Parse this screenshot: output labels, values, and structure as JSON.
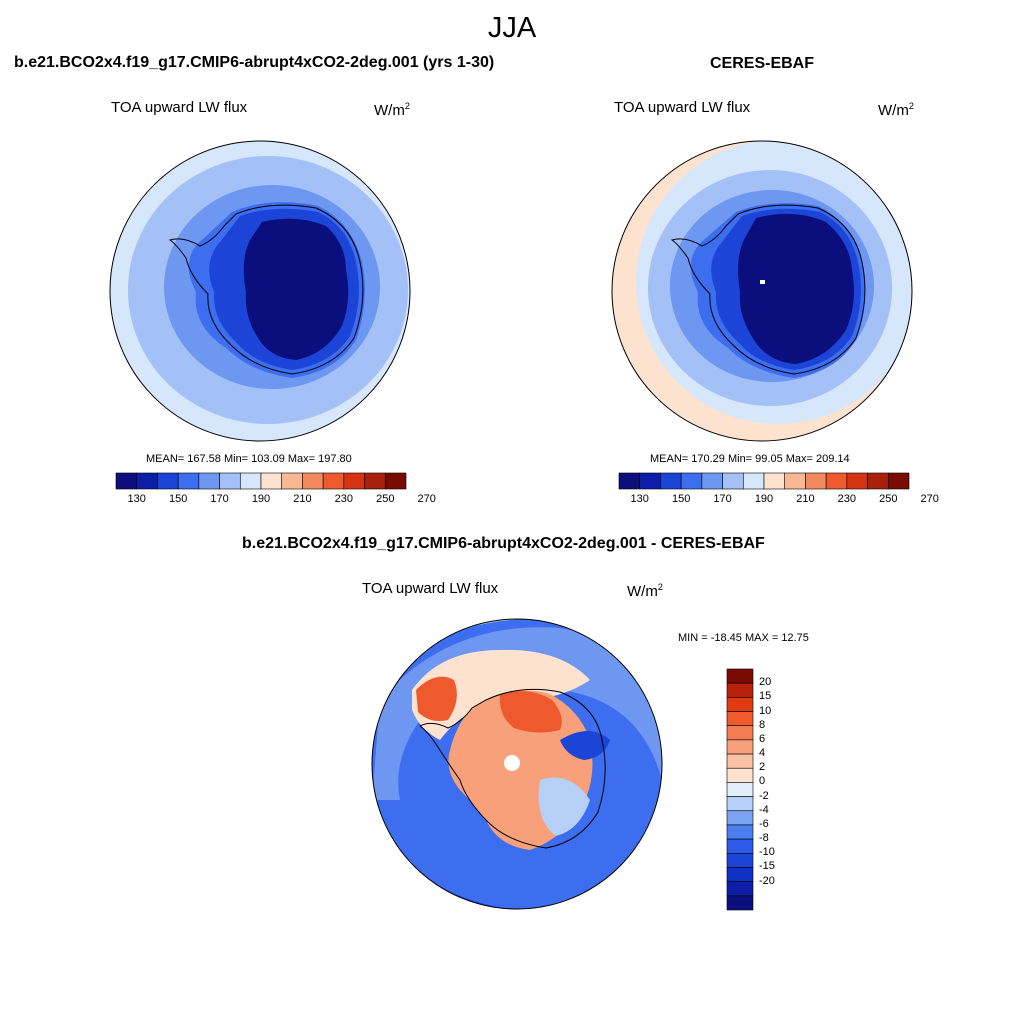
{
  "season": "JJA",
  "panels": [
    {
      "title": "b.e21.BCO2x4.f19_g17.CMIP6-abrupt4xCO2-2deg.001 (yrs 1-30)",
      "variable": "TOA upward LW flux",
      "units": "W/m",
      "units_exp": "2",
      "stats": "MEAN= 167.58  Min= 103.09  Max= 197.80"
    },
    {
      "title": "CERES-EBAF",
      "variable": "TOA upward LW flux",
      "units": "W/m",
      "units_exp": "2",
      "stats": "MEAN= 170.29  Min=  99.05  Max= 209.14"
    },
    {
      "title": "b.e21.BCO2x4.f19_g17.CMIP6-abrupt4xCO2-2deg.001 - CERES-EBAF",
      "variable": "TOA upward LW flux",
      "units": "W/m",
      "units_exp": "2",
      "stats": "MIN = -18.45 MAX =  12.75"
    }
  ],
  "colorbar_abs": {
    "colors": [
      "#0a0f7d",
      "#0c1ea8",
      "#1c45d8",
      "#3d6ef0",
      "#6e97f2",
      "#a3c0f7",
      "#d6e6fb",
      "#fde2d0",
      "#f8b894",
      "#f38a5e",
      "#ee5a2e",
      "#d63312",
      "#a8200b",
      "#7a0a04"
    ],
    "tick_labels": [
      "130",
      "150",
      "170",
      "190",
      "210",
      "230",
      "250",
      "270"
    ]
  },
  "colorbar_diff": {
    "colors": [
      "#0a0f7d",
      "#0c1ea8",
      "#0f32c4",
      "#1c45d8",
      "#2d5ae8",
      "#4a7ff0",
      "#7aa3f4",
      "#b7d0f8",
      "#e3eefb",
      "#fde2d0",
      "#fbc3a3",
      "#f8a07a",
      "#f47c52",
      "#f05a2c",
      "#e03a10",
      "#b8200a",
      "#7a0a04"
    ],
    "tick_labels": [
      "20",
      "15",
      "10",
      "8",
      "6",
      "4",
      "2",
      "0",
      "-2",
      "-4",
      "-6",
      "-8",
      "-10",
      "-15",
      "-20"
    ]
  },
  "map_colors": {
    "outer": "#d6e6fb",
    "ring1": "#a3c0f7",
    "ring2": "#6e97f2",
    "ring3": "#3d6ef0",
    "ring4": "#1c45d8",
    "core": "#0a0f7d",
    "ceres_edge": "#fde2d0",
    "diff_ocean": "#3d6ef0",
    "diff_warm": "#f8a07a",
    "diff_hot": "#ee5a2e",
    "diff_light": "#fde2d0"
  }
}
